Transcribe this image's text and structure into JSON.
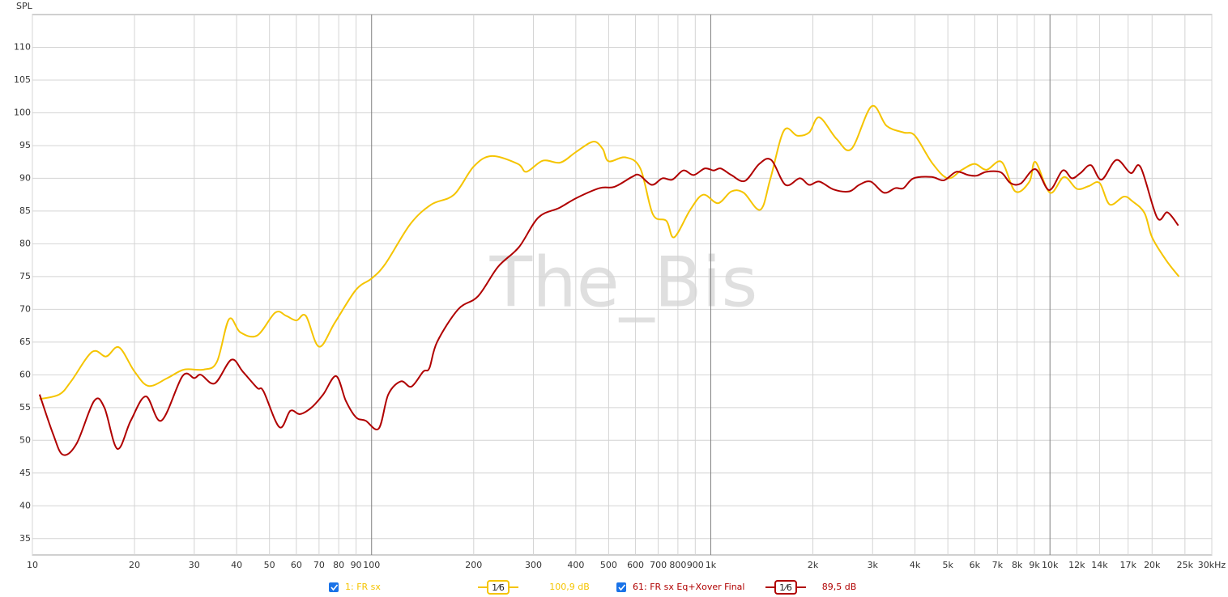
{
  "chart_data": {
    "type": "line",
    "title": "SPL",
    "watermark": "The_Bis",
    "log_x": true,
    "grid": true,
    "xlim": [
      10,
      30000
    ],
    "ylim": [
      32.5,
      115
    ],
    "xticks": [
      10,
      20,
      30,
      40,
      50,
      60,
      70,
      80,
      90,
      100,
      200,
      300,
      400,
      500,
      600,
      700,
      800,
      900,
      {
        "value": 1000,
        "label": "1k"
      },
      {
        "value": 2000,
        "label": "2k"
      },
      {
        "value": 3000,
        "label": "3k"
      },
      {
        "value": 4000,
        "label": "4k"
      },
      {
        "value": 5000,
        "label": "5k"
      },
      {
        "value": 6000,
        "label": "6k"
      },
      {
        "value": 7000,
        "label": "7k"
      },
      {
        "value": 8000,
        "label": "8k"
      },
      {
        "value": 9000,
        "label": "9k"
      },
      {
        "value": 10000,
        "label": "10k"
      },
      {
        "value": 12000,
        "label": "12k"
      },
      {
        "value": 14000,
        "label": "14k"
      },
      {
        "value": 17000,
        "label": "17k"
      },
      {
        "value": 20000,
        "label": "20k"
      },
      {
        "value": 25000,
        "label": "25k"
      },
      {
        "value": 30000,
        "label": "30kHz"
      }
    ],
    "yticks": [
      35,
      40,
      45,
      50,
      55,
      60,
      65,
      70,
      75,
      80,
      85,
      90,
      95,
      100,
      105,
      110
    ],
    "series": [
      {
        "name": "1: FR sx",
        "color": "#f5c400",
        "smoothing": "1⁄6",
        "level_label": "100,9 dB",
        "x": [
          10.5,
          12,
          13,
          15,
          16.5,
          18,
          20,
          22,
          25,
          28,
          32,
          35,
          38,
          41,
          46,
          52,
          56,
          60,
          64,
          70,
          78,
          90,
          100,
          110,
          130,
          150,
          175,
          200,
          226,
          270,
          286,
          320,
          360,
          400,
          450,
          480,
          500,
          560,
          620,
          675,
          740,
          780,
          870,
          950,
          1050,
          1150,
          1250,
          1400,
          1500,
          1644,
          1800,
          1950,
          2090,
          2350,
          2600,
          2980,
          3300,
          3700,
          4000,
          4500,
          5000,
          5500,
          6000,
          6500,
          7200,
          7900,
          8700,
          9060,
          10000,
          11000,
          12000,
          13000,
          14000,
          15000,
          16500,
          17500,
          19000,
          20000,
          22000,
          24000
        ],
        "values": [
          56.3,
          57,
          59,
          63.5,
          62.8,
          64.2,
          60.5,
          58.3,
          59.5,
          60.8,
          60.8,
          62,
          68.5,
          66.5,
          66,
          69.5,
          69,
          68.3,
          69,
          64.3,
          68,
          73,
          74.7,
          77,
          83,
          86,
          87.5,
          91.8,
          93.4,
          92.2,
          91,
          92.7,
          92.4,
          94,
          95.6,
          94.5,
          92.6,
          93.2,
          91.5,
          84.5,
          83.5,
          81,
          85.2,
          87.5,
          86.2,
          88,
          87.8,
          85.2,
          90,
          97.3,
          96.5,
          97,
          99.3,
          96,
          94.5,
          101,
          98,
          97,
          96.5,
          92.3,
          90,
          91.3,
          92.2,
          91.3,
          92.5,
          88,
          89.5,
          92.5,
          87.8,
          90.2,
          88.4,
          88.8,
          89.3,
          86,
          87.2,
          86.5,
          84.7,
          81,
          77.5,
          75
        ]
      },
      {
        "name": "61: FR sx Eq+Xover Final",
        "color": "#b00000",
        "smoothing": "1⁄6",
        "level_label": "89,5 dB",
        "x": [
          10.5,
          11.5,
          12.3,
          13.5,
          15.2,
          16.3,
          17.8,
          19.5,
          21.6,
          24,
          27.7,
          30,
          31.4,
          34.5,
          38.6,
          41.7,
          46,
          48,
          53.5,
          57.6,
          61.5,
          66.5,
          72,
          78.6,
          84,
          90,
          96,
          105,
          112,
          122,
          131,
          142,
          148,
          156,
          180,
          206,
          236,
          272,
          310,
          358,
          402,
          470,
          520,
          585,
          615,
          670,
          720,
          770,
          830,
          890,
          960,
          1020,
          1070,
          1150,
          1260,
          1390,
          1508,
          1660,
          1830,
          1950,
          2090,
          2300,
          2560,
          2740,
          2960,
          3240,
          3500,
          3700,
          3960,
          4480,
          4870,
          5300,
          5740,
          6080,
          6500,
          7170,
          7640,
          8200,
          9060,
          9950,
          10900,
          11600,
          12300,
          13200,
          14200,
          15700,
          17300,
          18500,
          20700,
          22200,
          23900
        ],
        "values": [
          57,
          51,
          47.8,
          49.5,
          56,
          55,
          48.7,
          53,
          56.7,
          53,
          59.8,
          59.5,
          60,
          58.7,
          62.3,
          60.5,
          58,
          57.5,
          52,
          54.5,
          54,
          55,
          57,
          59.8,
          56,
          53.5,
          53,
          51.8,
          57,
          59,
          58.2,
          60.5,
          61,
          65,
          70,
          72,
          76.5,
          79.5,
          84,
          85.5,
          87,
          88.5,
          88.7,
          90.2,
          90.5,
          89,
          90,
          89.8,
          91.2,
          90.5,
          91.5,
          91.2,
          91.5,
          90.5,
          89.6,
          92.2,
          92.8,
          89,
          90,
          89,
          89.5,
          88.3,
          88,
          89,
          89.5,
          87.8,
          88.5,
          88.5,
          90,
          90.2,
          89.7,
          91,
          90.5,
          90.4,
          91,
          90.9,
          89.3,
          89.2,
          91.4,
          88.2,
          91.2,
          90,
          90.8,
          92,
          89.8,
          92.8,
          90.8,
          91.7,
          84,
          84.8,
          82.8
        ]
      }
    ]
  }
}
